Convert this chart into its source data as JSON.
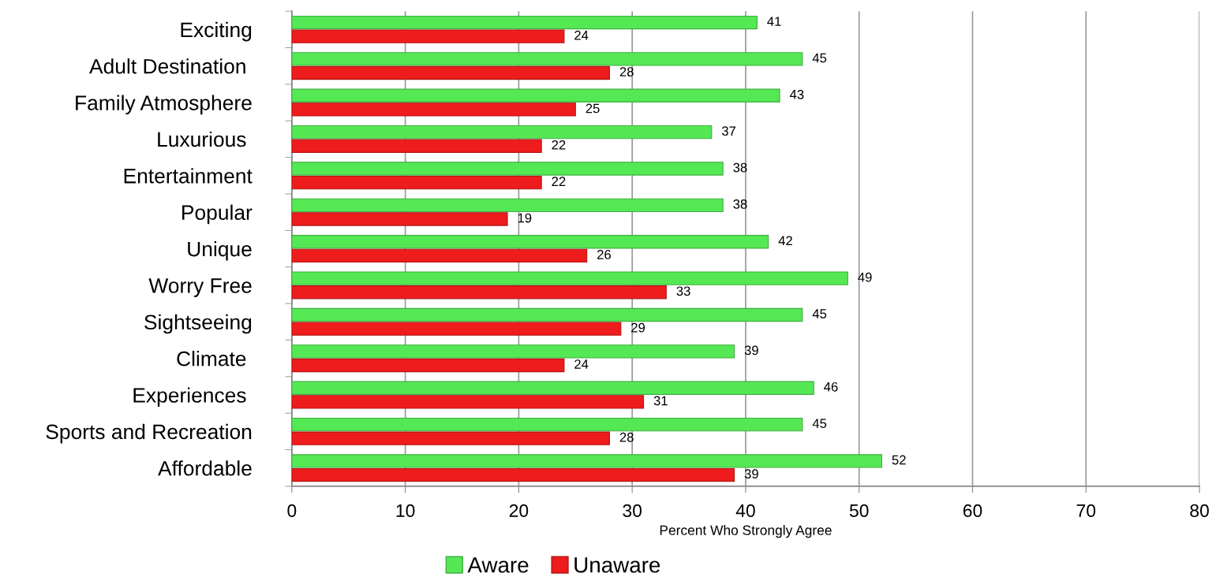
{
  "chart_data": {
    "type": "bar",
    "orientation": "horizontal",
    "categories": [
      "Exciting",
      "Adult Destination ",
      "Family Atmosphere",
      "Luxurious ",
      "Entertainment",
      "Popular",
      "Unique",
      "Worry Free",
      "Sightseeing",
      "Climate ",
      "Experiences ",
      "Sports and Recreation",
      "Affordable"
    ],
    "series": [
      {
        "name": "Aware",
        "color": "#55e855",
        "values": [
          41,
          45,
          43,
          37,
          38,
          38,
          42,
          49,
          45,
          39,
          46,
          45,
          52
        ]
      },
      {
        "name": "Unaware",
        "color": "#ee1c1c",
        "values": [
          24,
          28,
          25,
          22,
          22,
          19,
          26,
          33,
          29,
          24,
          31,
          28,
          39
        ]
      }
    ],
    "xlabel": "Percent Who Strongly Agree",
    "xlim": [
      0,
      80
    ],
    "xticks": [
      0,
      10,
      20,
      30,
      40,
      50,
      60,
      70,
      80
    ],
    "grid": "x",
    "legend": "bottom",
    "data_labels": true
  }
}
